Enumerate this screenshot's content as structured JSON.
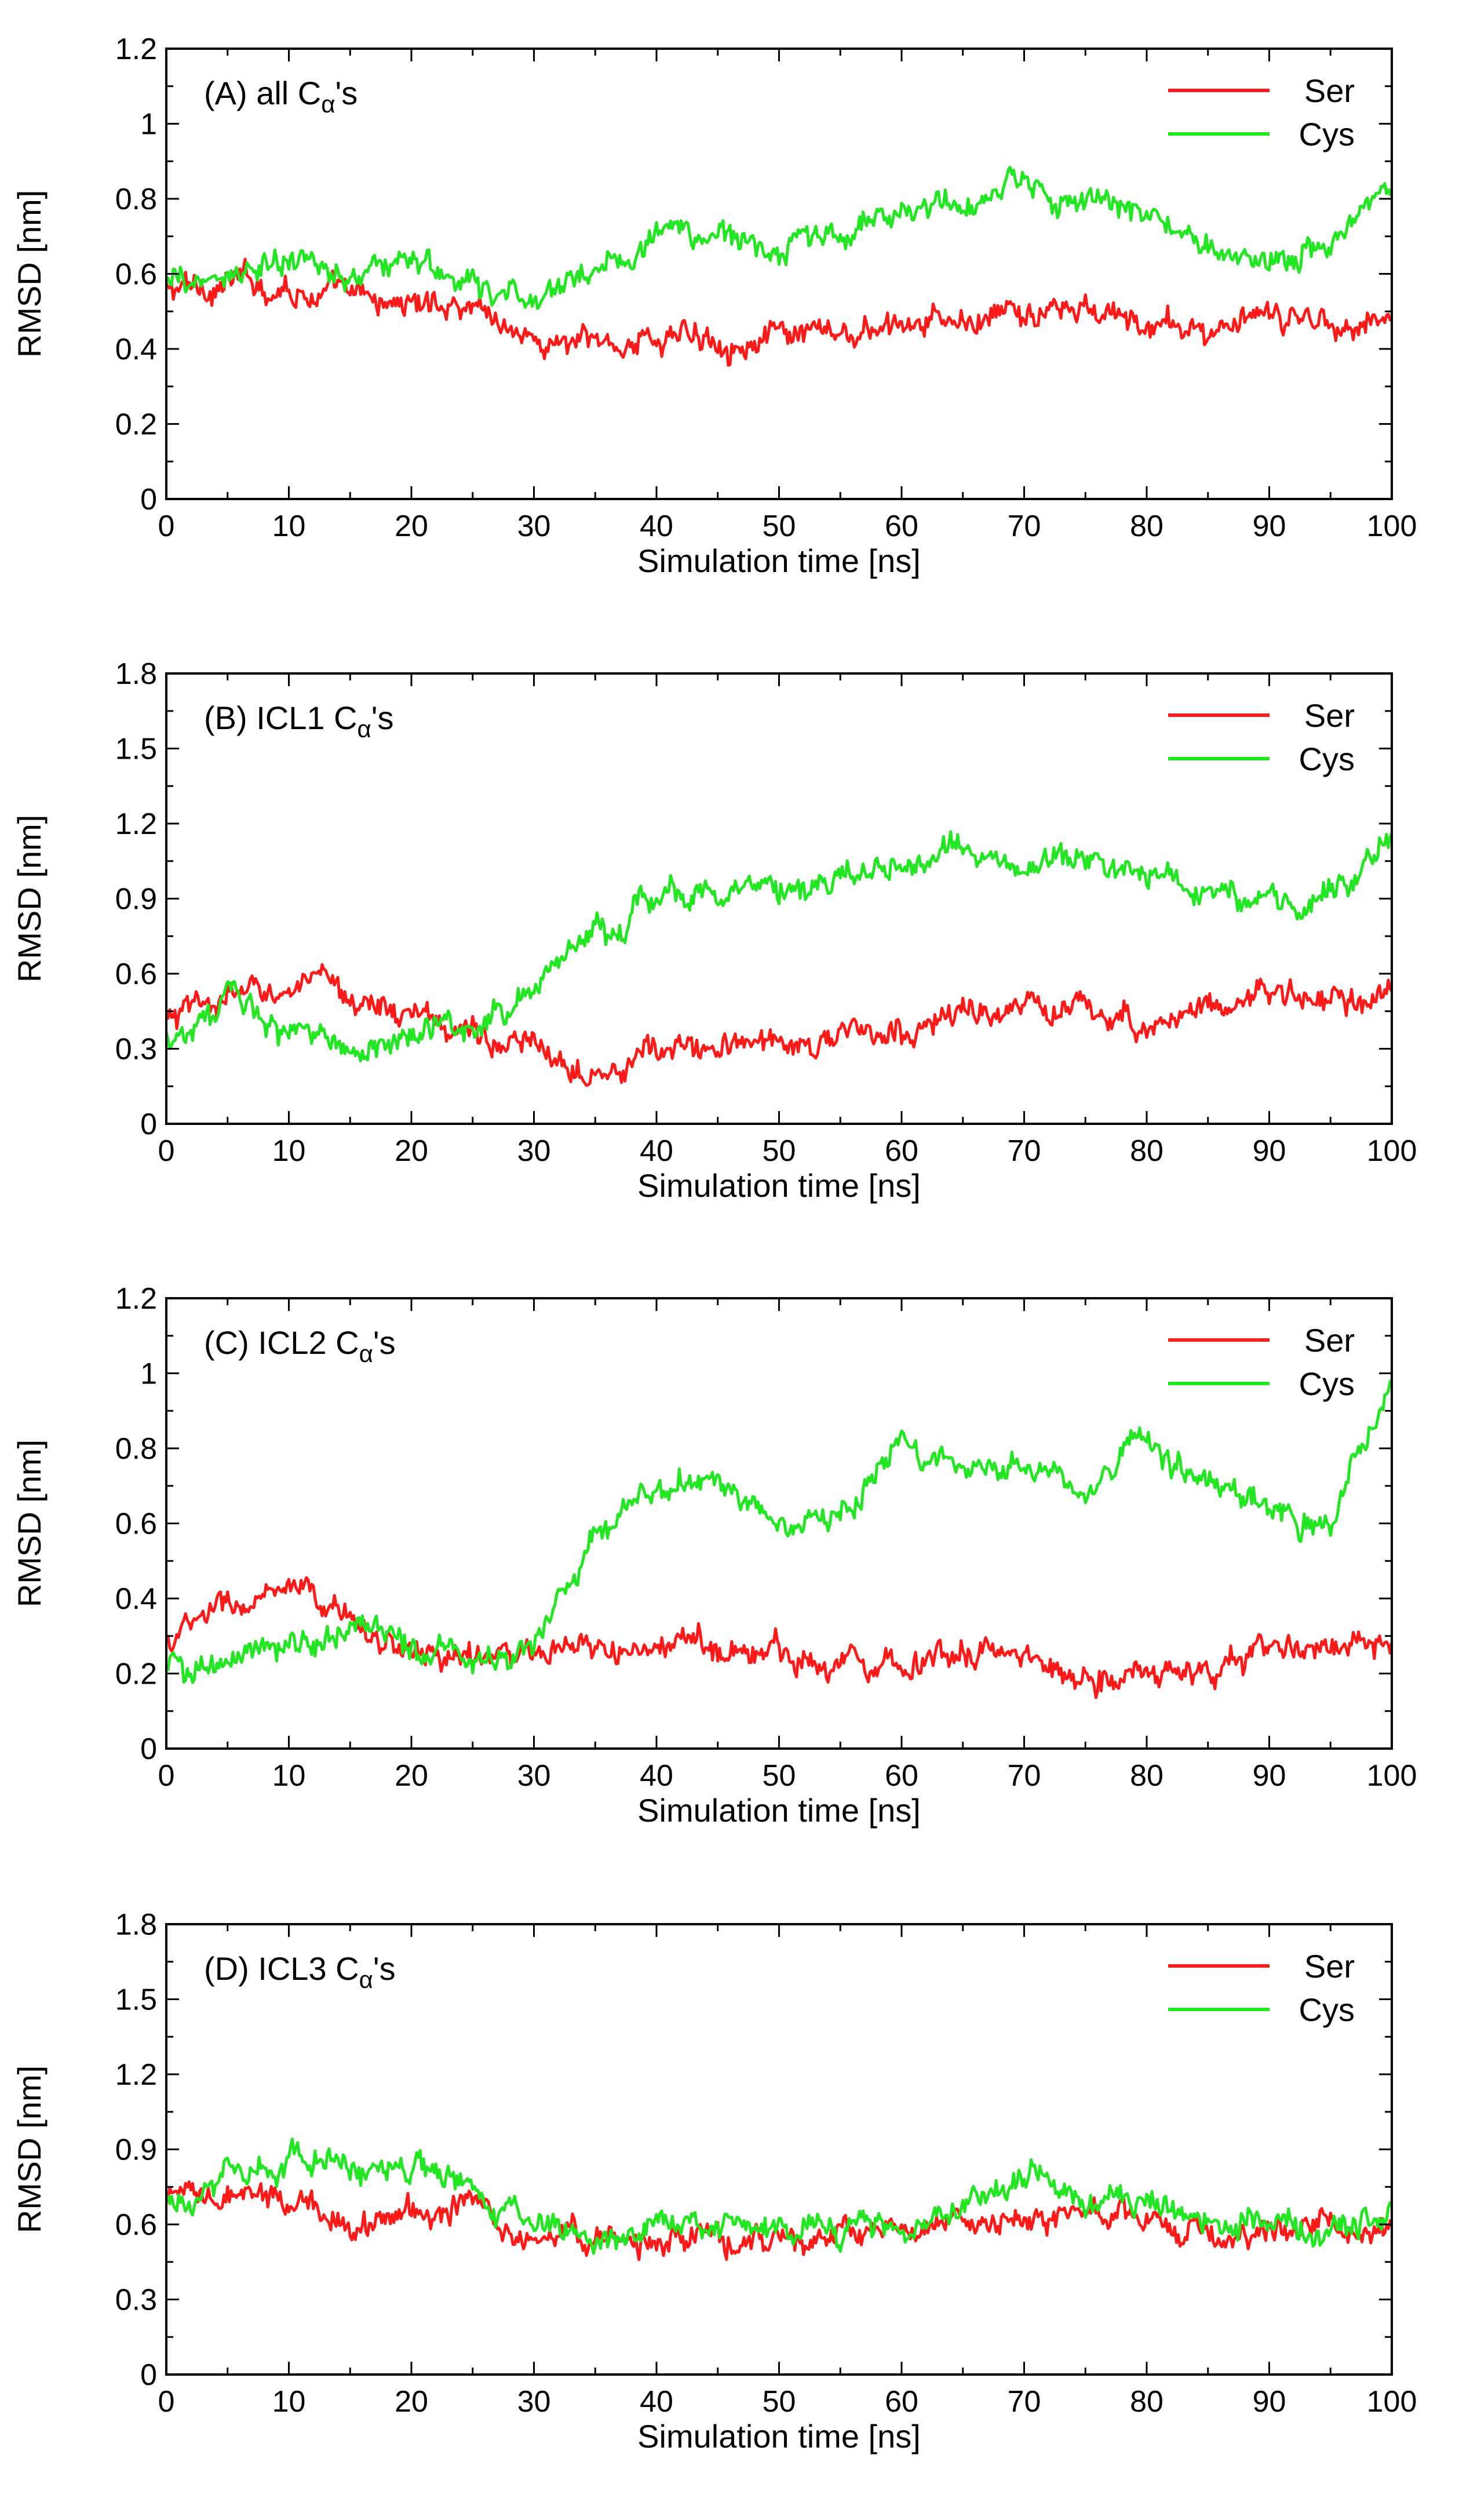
{
  "colors": {
    "ser": "#ff1a1a",
    "cys": "#22e622",
    "axis": "#000000"
  },
  "chart_data": [
    {
      "type": "line",
      "panel_label": "(A) all C",
      "panel_subscript": "α",
      "panel_suffix": "'s",
      "title": "",
      "xlabel": "Simulation time [ns]",
      "ylabel": "RMSD [nm]",
      "xlim": [
        0,
        100
      ],
      "ylim": [
        0,
        1.2
      ],
      "xticks": [
        0,
        10,
        20,
        30,
        40,
        50,
        60,
        70,
        80,
        90,
        100
      ],
      "xtick_labels": [
        "0",
        "10",
        "20",
        "30",
        "40",
        "50",
        "60",
        "70",
        "80",
        "90",
        "100"
      ],
      "yticks": [
        0,
        0.2,
        0.4,
        0.6,
        0.8,
        1.0,
        1.2
      ],
      "ytick_labels": [
        "0",
        "0.2",
        "0.4",
        "0.6",
        "0.8",
        "1",
        "1.2"
      ],
      "legend": [
        "Ser",
        "Cys"
      ],
      "legend_position": "top-right",
      "x": [
        0,
        5,
        10,
        15,
        20,
        25,
        30,
        35,
        40,
        45,
        50,
        55,
        60,
        65,
        70,
        75,
        80,
        85,
        90,
        95,
        100
      ],
      "series": [
        {
          "name": "Ser",
          "values": [
            0.55,
            0.58,
            0.57,
            0.53,
            0.52,
            0.53,
            0.42,
            0.41,
            0.43,
            0.44,
            0.42,
            0.43,
            0.45,
            0.47,
            0.49,
            0.5,
            0.46,
            0.45,
            0.47,
            0.48,
            0.48
          ]
        },
        {
          "name": "Cys",
          "values": [
            0.56,
            0.6,
            0.62,
            0.6,
            0.64,
            0.55,
            0.53,
            0.62,
            0.7,
            0.7,
            0.67,
            0.7,
            0.78,
            0.76,
            0.84,
            0.78,
            0.76,
            0.66,
            0.65,
            0.68,
            0.85
          ]
        }
      ]
    },
    {
      "type": "line",
      "panel_label": "(B) ICL1 C",
      "panel_subscript": "α",
      "panel_suffix": "'s",
      "title": "",
      "xlabel": "Simulation time [ns]",
      "ylabel": "RMSD [nm]",
      "xlim": [
        0,
        100
      ],
      "ylim": [
        0,
        1.8
      ],
      "xticks": [
        0,
        10,
        20,
        30,
        40,
        50,
        60,
        70,
        80,
        90,
        100
      ],
      "xtick_labels": [
        "0",
        "10",
        "20",
        "30",
        "40",
        "50",
        "60",
        "70",
        "80",
        "90",
        "100"
      ],
      "yticks": [
        0,
        0.3,
        0.6,
        0.9,
        1.2,
        1.5,
        1.8
      ],
      "ytick_labels": [
        "0",
        "0.3",
        "0.6",
        "0.9",
        "1.2",
        "1.5",
        "1.8"
      ],
      "legend": [
        "Ser",
        "Cys"
      ],
      "legend_position": "top-right",
      "x": [
        0,
        5,
        10,
        15,
        20,
        25,
        30,
        35,
        40,
        45,
        50,
        55,
        60,
        65,
        70,
        75,
        80,
        85,
        90,
        95,
        100
      ],
      "series": [
        {
          "name": "Ser",
          "values": [
            0.4,
            0.5,
            0.55,
            0.52,
            0.42,
            0.38,
            0.28,
            0.25,
            0.28,
            0.3,
            0.33,
            0.35,
            0.35,
            0.45,
            0.45,
            0.45,
            0.4,
            0.48,
            0.52,
            0.48,
            0.5
          ]
        },
        {
          "name": "Cys",
          "values": [
            0.35,
            0.48,
            0.38,
            0.28,
            0.38,
            0.38,
            0.55,
            0.78,
            0.9,
            0.95,
            0.9,
            0.97,
            1.05,
            1.08,
            1.05,
            1.05,
            1.0,
            0.95,
            0.88,
            0.92,
            1.15
          ]
        }
      ]
    },
    {
      "type": "line",
      "panel_label": "(C) ICL2 C",
      "panel_subscript": "α",
      "panel_suffix": "'s",
      "title": "",
      "xlabel": "Simulation time [ns]",
      "ylabel": "RMSD [nm]",
      "xlim": [
        0,
        100
      ],
      "ylim": [
        0,
        1.2
      ],
      "xticks": [
        0,
        10,
        20,
        30,
        40,
        50,
        60,
        70,
        80,
        90,
        100
      ],
      "xtick_labels": [
        "0",
        "10",
        "20",
        "30",
        "40",
        "50",
        "60",
        "70",
        "80",
        "90",
        "100"
      ],
      "yticks": [
        0,
        0.2,
        0.4,
        0.6,
        0.8,
        1.0,
        1.2
      ],
      "ytick_labels": [
        "0",
        "0.2",
        "0.4",
        "0.6",
        "0.8",
        "1",
        "1.2"
      ],
      "legend": [
        "Ser",
        "Cys"
      ],
      "legend_position": "top-right",
      "x": [
        0,
        5,
        10,
        15,
        20,
        25,
        30,
        35,
        40,
        45,
        50,
        55,
        60,
        65,
        70,
        75,
        80,
        85,
        90,
        95,
        100
      ],
      "series": [
        {
          "name": "Ser",
          "values": [
            0.28,
            0.38,
            0.4,
            0.35,
            0.25,
            0.25,
            0.24,
            0.25,
            0.26,
            0.28,
            0.25,
            0.24,
            0.24,
            0.26,
            0.24,
            0.2,
            0.2,
            0.2,
            0.26,
            0.28,
            0.25
          ]
        },
        {
          "name": "Cys",
          "values": [
            0.22,
            0.22,
            0.27,
            0.32,
            0.28,
            0.22,
            0.28,
            0.6,
            0.72,
            0.7,
            0.6,
            0.62,
            0.82,
            0.75,
            0.75,
            0.7,
            0.8,
            0.68,
            0.66,
            0.6,
            0.95
          ]
        }
      ]
    },
    {
      "type": "line",
      "panel_label": "(D) ICL3 C",
      "panel_subscript": "α",
      "panel_suffix": "'s",
      "title": "",
      "xlabel": "Simulation time [ns]",
      "ylabel": "RMSD [nm]",
      "xlim": [
        0,
        100
      ],
      "ylim": [
        0,
        1.8
      ],
      "xticks": [
        0,
        10,
        20,
        30,
        40,
        50,
        60,
        70,
        80,
        90,
        100
      ],
      "xtick_labels": [
        "0",
        "10",
        "20",
        "30",
        "40",
        "50",
        "60",
        "70",
        "80",
        "90",
        "100"
      ],
      "yticks": [
        0,
        0.3,
        0.6,
        0.9,
        1.2,
        1.5,
        1.8
      ],
      "ytick_labels": [
        "0",
        "0.3",
        "0.6",
        "0.9",
        "1.2",
        "1.5",
        "1.8"
      ],
      "legend": [
        "Ser",
        "Cys"
      ],
      "legend_position": "top-right",
      "x": [
        0,
        5,
        10,
        15,
        20,
        25,
        30,
        35,
        40,
        45,
        50,
        55,
        60,
        65,
        70,
        75,
        80,
        85,
        90,
        95,
        100
      ],
      "series": [
        {
          "name": "Ser",
          "values": [
            0.68,
            0.7,
            0.68,
            0.62,
            0.65,
            0.68,
            0.55,
            0.55,
            0.52,
            0.55,
            0.52,
            0.55,
            0.55,
            0.6,
            0.63,
            0.65,
            0.6,
            0.55,
            0.58,
            0.6,
            0.58
          ]
        },
        {
          "name": "Cys",
          "values": [
            0.72,
            0.8,
            0.85,
            0.8,
            0.85,
            0.72,
            0.6,
            0.58,
            0.58,
            0.6,
            0.62,
            0.58,
            0.6,
            0.68,
            0.8,
            0.72,
            0.7,
            0.62,
            0.6,
            0.6,
            0.62
          ]
        }
      ]
    }
  ]
}
